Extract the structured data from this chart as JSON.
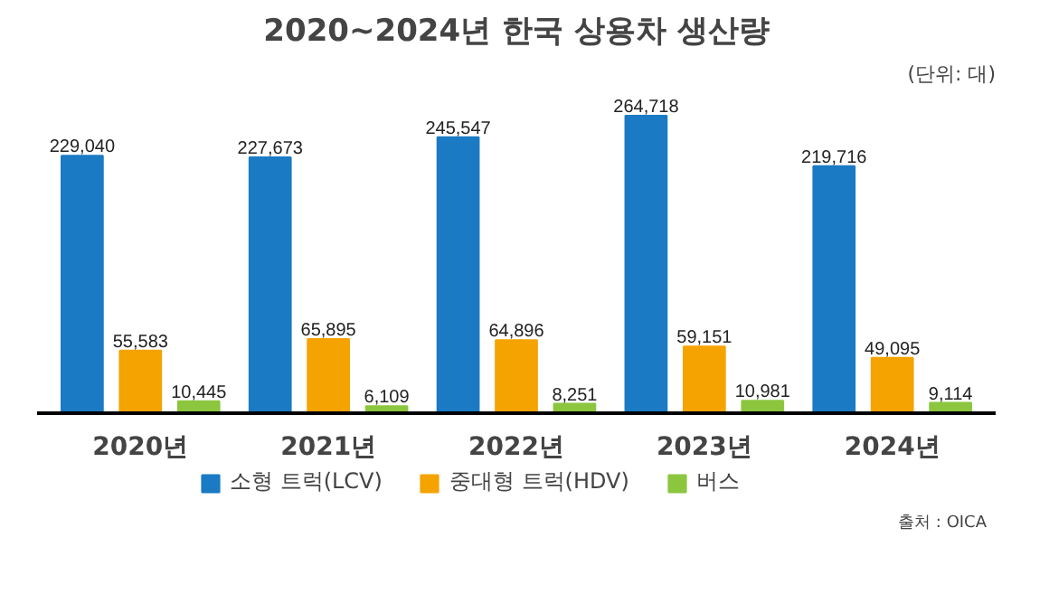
{
  "chart_data": {
    "type": "bar",
    "title": "2020~2024년 한국 상용차 생산량",
    "categories": [
      "2020년",
      "2021년",
      "2022년",
      "2023년",
      "2024년"
    ],
    "series": [
      {
        "name": "소형 트럭(LCV)",
        "color": "#1a7bc4",
        "values": [
          229040,
          227673,
          245547,
          264718,
          219716
        ],
        "value_labels": [
          "229,040",
          "227,673",
          "245,547",
          "264,718",
          "219,716"
        ]
      },
      {
        "name": "중대형 트럭(HDV)",
        "color": "#f5a300",
        "values": [
          55583,
          65895,
          64896,
          59151,
          49095
        ],
        "value_labels": [
          "55,583",
          "65,895",
          "64,896",
          "59,151",
          "49,095"
        ]
      },
      {
        "name": "버스",
        "color": "#8cc63f",
        "values": [
          10445,
          6109,
          8251,
          10981,
          9114
        ],
        "value_labels": [
          "10,445",
          "6,109",
          "8,251",
          "10,981",
          "9,114"
        ]
      }
    ],
    "legend": "bottom",
    "annotations": [
      "(단위: 대)",
      "출처 : OICA"
    ]
  }
}
